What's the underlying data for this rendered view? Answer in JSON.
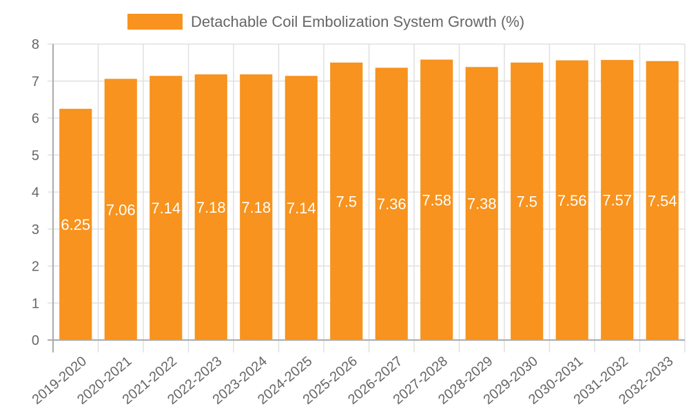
{
  "chart_data": {
    "type": "bar",
    "title": "",
    "xlabel": "",
    "ylabel": "",
    "ylim": [
      0,
      8
    ],
    "yticks": [
      "0",
      "1",
      "2",
      "3",
      "4",
      "5",
      "6",
      "7",
      "8"
    ],
    "grid": true,
    "legend_position": "top-center",
    "categories": [
      "2019-2020",
      "2020-2021",
      "2021-2022",
      "2022-2023",
      "2023-2024",
      "2024-2025",
      "2025-2026",
      "2026-2027",
      "2027-2028",
      "2028-2029",
      "2029-2030",
      "2030-2031",
      "2031-2032",
      "2032-2033"
    ],
    "series": [
      {
        "name": "Detachable Coil Embolization System Growth (%)",
        "color": "#f7931e",
        "values": [
          6.25,
          7.06,
          7.14,
          7.18,
          7.18,
          7.14,
          7.5,
          7.36,
          7.58,
          7.38,
          7.5,
          7.56,
          7.57,
          7.54
        ],
        "data_labels": [
          "6.25",
          "7.06",
          "7.14",
          "7.18",
          "7.18",
          "7.14",
          "7.5",
          "7.36",
          "7.58",
          "7.38",
          "7.5",
          "7.56",
          "7.57",
          "7.54"
        ]
      }
    ]
  },
  "colors": {
    "bar": "#f7931e",
    "grid": "#e0e0e0",
    "axis": "#aaaaaa",
    "text": "#666666",
    "label": "#ffffff"
  }
}
